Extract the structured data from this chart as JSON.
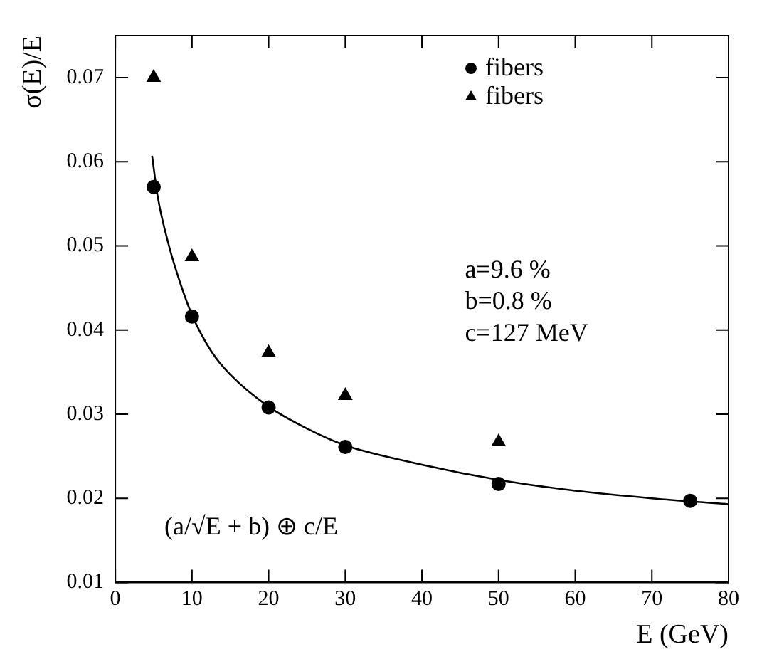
{
  "chart_data": {
    "type": "scatter",
    "xlabel": "E (GeV)",
    "ylabel": "σ(E)/E",
    "xlim": [
      0,
      80
    ],
    "xticks": [
      0,
      10,
      20,
      30,
      40,
      50,
      60,
      70,
      80
    ],
    "ylim": [
      0.01,
      0.075
    ],
    "yticks": [
      0.01,
      0.02,
      0.03,
      0.04,
      0.05,
      0.06,
      0.07
    ],
    "grid": false,
    "legend": "top right",
    "annotations": [
      "a=9.6 %",
      "b=0.8 %",
      "c=127 MeV",
      "(a/√E + b) ⊕ c/E"
    ],
    "series": [
      {
        "name": "fibers",
        "type": "scatter",
        "marker": "circle",
        "color": "#000000",
        "x": [
          5,
          10,
          20,
          30,
          50,
          75
        ],
        "values": [
          0.057,
          0.0416,
          0.0308,
          0.0261,
          0.0217,
          0.0197
        ]
      },
      {
        "name": "fibers",
        "type": "scatter",
        "marker": "triangle",
        "color": "#000000",
        "x": [
          5,
          10,
          20,
          30,
          50
        ],
        "values": [
          0.07,
          0.0487,
          0.0373,
          0.0322,
          0.0267
        ]
      },
      {
        "type": "line",
        "marker": "none",
        "line_style": "solid",
        "color": "#000000",
        "x": [
          4.8,
          5.5,
          7,
          8.5,
          10,
          12.5,
          15,
          20,
          25,
          30,
          40,
          50,
          60,
          70,
          80
        ],
        "values": [
          0.0607,
          0.056,
          0.05,
          0.0455,
          0.0418,
          0.0375,
          0.0347,
          0.0309,
          0.0283,
          0.0263,
          0.024,
          0.0222,
          0.0209,
          0.02,
          0.0193
        ]
      }
    ]
  }
}
